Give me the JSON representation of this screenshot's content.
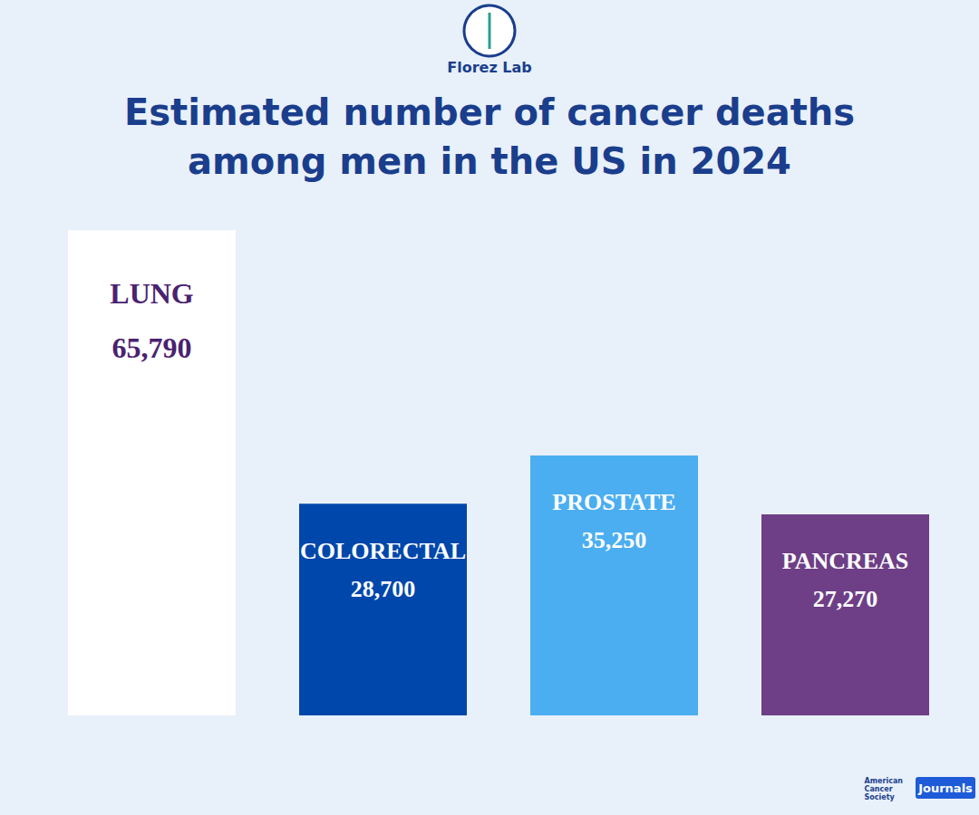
{
  "chart_data": {
    "type": "bar",
    "title": "Estimated number of cancer deaths among men in the US in 2024",
    "annotations": [
      "Florez Lab",
      "American Cancer Society",
      "Journals"
    ],
    "categories": [
      "LUNG",
      "COLORECTAL",
      "PROSTATE",
      "PANCREAS"
    ],
    "values": [
      65790,
      28700,
      35250,
      27270
    ],
    "value_labels": [
      "65,790",
      "28,700",
      "35,250",
      "27,270"
    ],
    "colors": [
      "#ffffff",
      "#0047ab",
      "#4aaef0",
      "#6e3f86"
    ],
    "ylim": [
      0,
      70000
    ],
    "yticks": [
      0,
      70000
    ],
    "data_labels": true,
    "tick_labels": false,
    "grid": false
  }
}
